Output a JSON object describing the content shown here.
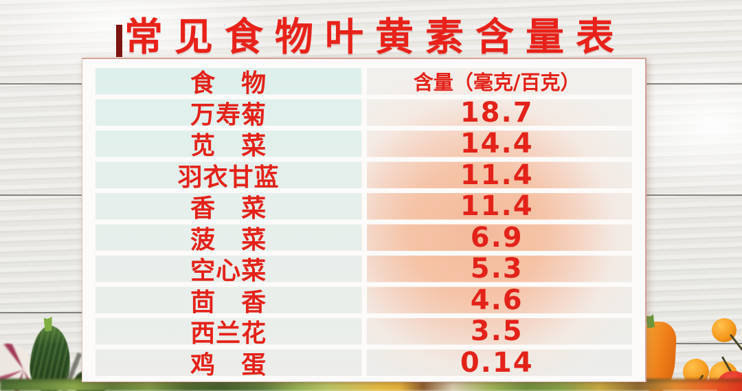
{
  "title": {
    "text": "常见食物叶黄素含量表"
  },
  "table": {
    "header": {
      "food": "食　物",
      "amount": "含量（毫克/百克）"
    },
    "rows": [
      {
        "food": "万寿菊",
        "amount": "18.7"
      },
      {
        "food": "苋　菜",
        "amount": "14.4"
      },
      {
        "food": "羽衣甘蓝",
        "amount": "11.4"
      },
      {
        "food": "香　菜",
        "amount": "11.4"
      },
      {
        "food": "菠　菜",
        "amount": "6.9"
      },
      {
        "food": "空心菜",
        "amount": "5.3"
      },
      {
        "food": "茴　香",
        "amount": "4.6"
      },
      {
        "food": "西兰花",
        "amount": "3.5"
      },
      {
        "food": "鸡　蛋",
        "amount": "0.14"
      }
    ]
  },
  "colors": {
    "title_red": "#e8221a",
    "title_accent_dark": "#7c1410",
    "table_text_red": "#e32219",
    "cell_mint": "#dff0ec",
    "cell_peach": "#f4ba9c",
    "card_bg": "#fcfbfa"
  },
  "chart_data": {
    "type": "table",
    "title": "常见食物叶黄素含量表",
    "columns": [
      "食物",
      "含量（毫克/百克）"
    ],
    "categories": [
      "万寿菊",
      "苋菜",
      "羽衣甘蓝",
      "香菜",
      "菠菜",
      "空心菜",
      "茴香",
      "西兰花",
      "鸡蛋"
    ],
    "values": [
      18.7,
      14.4,
      11.4,
      11.4,
      6.9,
      5.3,
      4.6,
      3.5,
      0.14
    ],
    "unit": "毫克/百克"
  }
}
